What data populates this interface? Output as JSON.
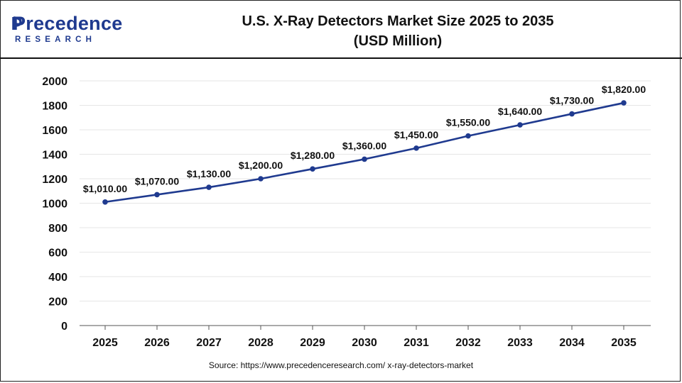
{
  "header": {
    "logo_word": "Precedence",
    "logo_sub": "RESEARCH",
    "title_line1": "U.S. X-Ray Detectors Market Size 2025 to 2035",
    "title_line2": "(USD Million)"
  },
  "source": "Source: https://www.precedenceresearch.com/ x-ray-detectors-market",
  "colors": {
    "line": "#1f3a8f",
    "logo": "#1f3a8f",
    "grid": "#e6e6e6"
  },
  "chart_data": {
    "type": "line",
    "categories": [
      "2025",
      "2026",
      "2027",
      "2028",
      "2029",
      "2030",
      "2031",
      "2032",
      "2033",
      "2034",
      "2035"
    ],
    "values": [
      1010,
      1070,
      1130,
      1200,
      1280,
      1360,
      1450,
      1550,
      1640,
      1730,
      1820
    ],
    "data_labels": [
      "$1,010.00",
      "$1,070.00",
      "$1,130.00",
      "$1,200.00",
      "$1,280.00",
      "$1,360.00",
      "$1,450.00",
      "$1,550.00",
      "$1,640.00",
      "$1,730.00",
      "$1,820.00"
    ],
    "y_ticks": [
      "0",
      "200",
      "400",
      "600",
      "800",
      "1000",
      "1200",
      "1400",
      "1600",
      "1800",
      "2000"
    ],
    "ylim": [
      0,
      2000
    ],
    "grid": true,
    "legend": "none"
  }
}
